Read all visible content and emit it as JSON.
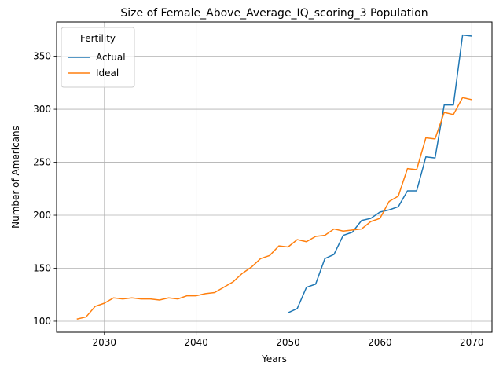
{
  "chart_data": {
    "type": "line",
    "title": "Size of Female_Above_Average_IQ_scoring_3 Population",
    "xlabel": "Years",
    "ylabel": "Number of Americans",
    "xlim": [
      2024.8,
      2072.2
    ],
    "ylim": [
      89.6,
      382.3
    ],
    "xticks": [
      2030,
      2040,
      2050,
      2060,
      2070
    ],
    "yticks": [
      100,
      150,
      200,
      250,
      300,
      350
    ],
    "grid": true,
    "legend": {
      "title": "Fertility",
      "placement": "top-left"
    },
    "series": [
      {
        "name": "Actual",
        "color": "#1f77b4",
        "x": [
          2050,
          2051,
          2052,
          2053,
          2054,
          2055,
          2056,
          2057,
          2058,
          2059,
          2060,
          2061,
          2062,
          2063,
          2064,
          2065,
          2066,
          2067,
          2068,
          2069,
          2070
        ],
        "y": [
          108,
          112,
          132,
          135,
          159,
          163,
          181,
          184,
          195,
          197,
          203,
          205,
          208,
          223,
          223,
          255,
          254,
          304,
          304,
          370,
          369
        ]
      },
      {
        "name": "Ideal",
        "color": "#ff7f0e",
        "x": [
          2027,
          2028,
          2029,
          2030,
          2031,
          2032,
          2033,
          2034,
          2035,
          2036,
          2037,
          2038,
          2039,
          2040,
          2041,
          2042,
          2043,
          2044,
          2045,
          2046,
          2047,
          2048,
          2049,
          2050,
          2051,
          2052,
          2053,
          2054,
          2055,
          2056,
          2057,
          2058,
          2059,
          2060,
          2061,
          2062,
          2063,
          2064,
          2065,
          2066,
          2067,
          2068,
          2069,
          2070
        ],
        "y": [
          102,
          104,
          114,
          117,
          122,
          121,
          122,
          121,
          121,
          120,
          122,
          121,
          124,
          124,
          126,
          127,
          132,
          137,
          145,
          151,
          159,
          162,
          171,
          170,
          177,
          175,
          180,
          181,
          187,
          185,
          186,
          187,
          194,
          197,
          213,
          218,
          244,
          243,
          273,
          272,
          297,
          295,
          311,
          309
        ]
      }
    ]
  }
}
